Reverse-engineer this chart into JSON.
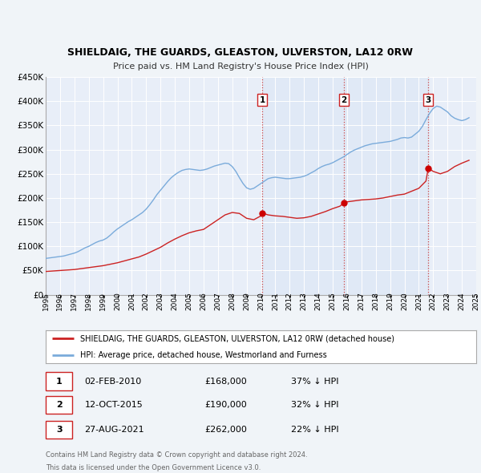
{
  "title": "SHIELDAIG, THE GUARDS, GLEASTON, ULVERSTON, LA12 0RW",
  "subtitle": "Price paid vs. HM Land Registry's House Price Index (HPI)",
  "background_color": "#f0f4f8",
  "plot_bg_color": "#e8eef8",
  "grid_color": "#ffffff",
  "x_start_year": 1995,
  "x_end_year": 2025,
  "y_min": 0,
  "y_max": 450000,
  "y_ticks": [
    0,
    50000,
    100000,
    150000,
    200000,
    250000,
    300000,
    350000,
    400000,
    450000
  ],
  "y_tick_labels": [
    "£0",
    "£50K",
    "£100K",
    "£150K",
    "£200K",
    "£250K",
    "£300K",
    "£350K",
    "£400K",
    "£450K"
  ],
  "hpi_color": "#7aabdb",
  "price_color": "#cc2222",
  "sale_marker_color": "#cc0000",
  "vline_color": "#cc4444",
  "legend_label_price": "SHIELDAIG, THE GUARDS, GLEASTON, ULVERSTON, LA12 0RW (detached house)",
  "legend_label_hpi": "HPI: Average price, detached house, Westmorland and Furness",
  "table_rows": [
    {
      "num": "1",
      "date": "02-FEB-2010",
      "price": "£168,000",
      "pct": "37% ↓ HPI"
    },
    {
      "num": "2",
      "date": "12-OCT-2015",
      "price": "£190,000",
      "pct": "32% ↓ HPI"
    },
    {
      "num": "3",
      "date": "27-AUG-2021",
      "price": "£262,000",
      "pct": "22% ↓ HPI"
    }
  ],
  "footer_line1": "Contains HM Land Registry data © Crown copyright and database right 2024.",
  "footer_line2": "This data is licensed under the Open Government Licence v3.0.",
  "sale_years": [
    2010.09,
    2015.79,
    2021.66
  ],
  "sale_prices_plot": [
    168000,
    190000,
    262000
  ],
  "hpi_data_x": [
    1995.0,
    1995.25,
    1995.5,
    1995.75,
    1996.0,
    1996.25,
    1996.5,
    1996.75,
    1997.0,
    1997.25,
    1997.5,
    1997.75,
    1998.0,
    1998.25,
    1998.5,
    1998.75,
    1999.0,
    1999.25,
    1999.5,
    1999.75,
    2000.0,
    2000.25,
    2000.5,
    2000.75,
    2001.0,
    2001.25,
    2001.5,
    2001.75,
    2002.0,
    2002.25,
    2002.5,
    2002.75,
    2003.0,
    2003.25,
    2003.5,
    2003.75,
    2004.0,
    2004.25,
    2004.5,
    2004.75,
    2005.0,
    2005.25,
    2005.5,
    2005.75,
    2006.0,
    2006.25,
    2006.5,
    2006.75,
    2007.0,
    2007.25,
    2007.5,
    2007.75,
    2008.0,
    2008.25,
    2008.5,
    2008.75,
    2009.0,
    2009.25,
    2009.5,
    2009.75,
    2010.0,
    2010.25,
    2010.5,
    2010.75,
    2011.0,
    2011.25,
    2011.5,
    2011.75,
    2012.0,
    2012.25,
    2012.5,
    2012.75,
    2013.0,
    2013.25,
    2013.5,
    2013.75,
    2014.0,
    2014.25,
    2014.5,
    2014.75,
    2015.0,
    2015.25,
    2015.5,
    2015.75,
    2016.0,
    2016.25,
    2016.5,
    2016.75,
    2017.0,
    2017.25,
    2017.5,
    2017.75,
    2018.0,
    2018.25,
    2018.5,
    2018.75,
    2019.0,
    2019.25,
    2019.5,
    2019.75,
    2020.0,
    2020.25,
    2020.5,
    2020.75,
    2021.0,
    2021.25,
    2021.5,
    2021.75,
    2022.0,
    2022.25,
    2022.5,
    2022.75,
    2023.0,
    2023.25,
    2023.5,
    2023.75,
    2024.0,
    2024.25,
    2024.5
  ],
  "hpi_data_y": [
    75000,
    76000,
    77000,
    78000,
    79000,
    80000,
    82000,
    84000,
    86000,
    89000,
    93000,
    97000,
    100000,
    104000,
    108000,
    111000,
    113000,
    117000,
    123000,
    130000,
    136000,
    141000,
    146000,
    151000,
    155000,
    160000,
    165000,
    170000,
    177000,
    186000,
    196000,
    207000,
    216000,
    225000,
    234000,
    242000,
    248000,
    253000,
    257000,
    259000,
    260000,
    259000,
    258000,
    257000,
    258000,
    260000,
    263000,
    266000,
    268000,
    270000,
    272000,
    271000,
    265000,
    255000,
    242000,
    230000,
    221000,
    218000,
    220000,
    225000,
    230000,
    235000,
    240000,
    242000,
    243000,
    242000,
    241000,
    240000,
    240000,
    241000,
    242000,
    243000,
    245000,
    248000,
    252000,
    256000,
    261000,
    265000,
    268000,
    270000,
    273000,
    277000,
    281000,
    285000,
    290000,
    295000,
    299000,
    302000,
    305000,
    308000,
    310000,
    312000,
    313000,
    314000,
    315000,
    316000,
    317000,
    319000,
    321000,
    324000,
    325000,
    324000,
    326000,
    332000,
    338000,
    348000,
    362000,
    375000,
    385000,
    390000,
    388000,
    383000,
    378000,
    370000,
    365000,
    362000,
    360000,
    362000,
    366000
  ],
  "price_data_x": [
    1995.0,
    1995.5,
    1996.0,
    1996.5,
    1997.0,
    1997.5,
    1998.0,
    1998.5,
    1999.0,
    1999.5,
    2000.0,
    2000.5,
    2001.0,
    2001.5,
    2002.0,
    2002.5,
    2003.0,
    2003.5,
    2004.0,
    2004.5,
    2005.0,
    2005.5,
    2006.0,
    2006.5,
    2007.0,
    2007.5,
    2008.0,
    2008.5,
    2009.0,
    2009.5,
    2010.0,
    2010.17,
    2010.5,
    2011.0,
    2011.5,
    2012.0,
    2012.5,
    2013.0,
    2013.5,
    2014.0,
    2014.5,
    2015.0,
    2015.5,
    2015.79,
    2016.0,
    2016.5,
    2017.0,
    2017.5,
    2018.0,
    2018.5,
    2019.0,
    2019.5,
    2020.0,
    2020.5,
    2021.0,
    2021.5,
    2021.66,
    2022.0,
    2022.5,
    2023.0,
    2023.5,
    2024.0,
    2024.5
  ],
  "price_data_y": [
    48000,
    49000,
    50000,
    51000,
    52000,
    54000,
    56000,
    58000,
    60000,
    63000,
    66000,
    70000,
    74000,
    78000,
    84000,
    91000,
    98000,
    107000,
    115000,
    122000,
    128000,
    132000,
    135000,
    145000,
    155000,
    165000,
    170000,
    168000,
    158000,
    155000,
    163000,
    168000,
    165000,
    163000,
    162000,
    160000,
    158000,
    159000,
    162000,
    167000,
    172000,
    178000,
    183000,
    190000,
    192000,
    194000,
    196000,
    197000,
    198000,
    200000,
    203000,
    206000,
    208000,
    214000,
    220000,
    235000,
    262000,
    255000,
    250000,
    255000,
    265000,
    272000,
    278000
  ]
}
